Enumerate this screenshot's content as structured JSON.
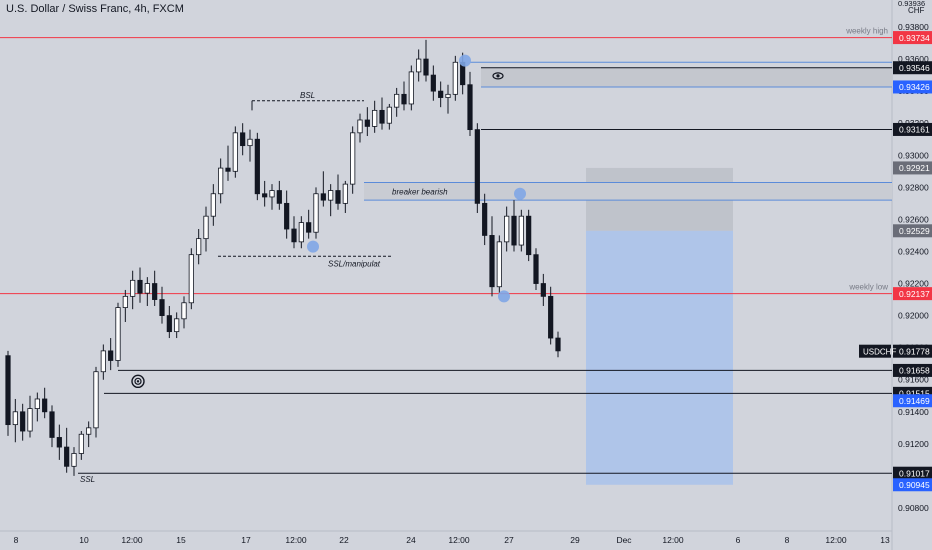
{
  "header": {
    "title": "U.S. Dollar / Swiss Franc, 4h, FXCM",
    "currency": "CHF"
  },
  "colors": {
    "bull": "#ffffff",
    "bear": "#131722",
    "red_line": "#f23645",
    "blue_line": "#5b8bd9",
    "bubble": "#7fa6e6",
    "box_blue": "#a6c0ec",
    "box_gray": "#bcc0c8"
  },
  "chart_data": {
    "type": "candlestick",
    "y_range": [
      0.907,
      0.939
    ],
    "y_ticks": [
      "0.93800",
      "0.93600",
      "0.93400",
      "0.93200",
      "0.93000",
      "0.92800",
      "0.92600",
      "0.92400",
      "0.92200",
      "0.92000",
      "0.91800",
      "0.91600",
      "0.91400",
      "0.91200",
      "0.91000",
      "0.90800"
    ],
    "x_labels": [
      "8",
      "10",
      "12:00",
      "15",
      "17",
      "12:00",
      "22",
      "24",
      "12:00",
      "27",
      "29",
      "Dec",
      "12:00",
      "6",
      "8",
      "12:00",
      "13"
    ],
    "candles": [
      [
        0.9175,
        0.9178,
        0.9125,
        0.9132
      ],
      [
        0.9132,
        0.9148,
        0.9121,
        0.914
      ],
      [
        0.914,
        0.9145,
        0.9122,
        0.9128
      ],
      [
        0.9128,
        0.915,
        0.9124,
        0.9142
      ],
      [
        0.9142,
        0.9152,
        0.9134,
        0.9148
      ],
      [
        0.9148,
        0.9155,
        0.9136,
        0.914
      ],
      [
        0.914,
        0.9144,
        0.9118,
        0.9124
      ],
      [
        0.9124,
        0.9132,
        0.911,
        0.9118
      ],
      [
        0.9118,
        0.913,
        0.9102,
        0.9106
      ],
      [
        0.9106,
        0.9118,
        0.91,
        0.9114
      ],
      [
        0.9114,
        0.9128,
        0.911,
        0.9126
      ],
      [
        0.9126,
        0.9134,
        0.9118,
        0.913
      ],
      [
        0.913,
        0.9168,
        0.9124,
        0.9165
      ],
      [
        0.9165,
        0.9182,
        0.916,
        0.9178
      ],
      [
        0.9178,
        0.9186,
        0.9166,
        0.9172
      ],
      [
        0.9172,
        0.9208,
        0.9168,
        0.9205
      ],
      [
        0.9205,
        0.9216,
        0.9196,
        0.9212
      ],
      [
        0.9212,
        0.9228,
        0.9204,
        0.9222
      ],
      [
        0.9222,
        0.923,
        0.9208,
        0.9214
      ],
      [
        0.9214,
        0.9224,
        0.9206,
        0.922
      ],
      [
        0.922,
        0.9228,
        0.9206,
        0.921
      ],
      [
        0.921,
        0.9218,
        0.9195,
        0.92
      ],
      [
        0.92,
        0.9206,
        0.9186,
        0.919
      ],
      [
        0.919,
        0.9202,
        0.9186,
        0.9198
      ],
      [
        0.9198,
        0.9212,
        0.9192,
        0.9208
      ],
      [
        0.9208,
        0.9242,
        0.9204,
        0.9238
      ],
      [
        0.9238,
        0.9254,
        0.9232,
        0.9248
      ],
      [
        0.9248,
        0.9268,
        0.924,
        0.9262
      ],
      [
        0.9262,
        0.9282,
        0.9256,
        0.9276
      ],
      [
        0.9276,
        0.9298,
        0.927,
        0.9292
      ],
      [
        0.9292,
        0.9306,
        0.9284,
        0.929
      ],
      [
        0.929,
        0.9318,
        0.9286,
        0.9314
      ],
      [
        0.9314,
        0.932,
        0.93,
        0.9306
      ],
      [
        0.9306,
        0.9316,
        0.9296,
        0.931
      ],
      [
        0.931,
        0.9314,
        0.9272,
        0.9276
      ],
      [
        0.9276,
        0.9284,
        0.9268,
        0.9274
      ],
      [
        0.9274,
        0.9282,
        0.9266,
        0.9278
      ],
      [
        0.9278,
        0.9284,
        0.9266,
        0.927
      ],
      [
        0.927,
        0.9278,
        0.9248,
        0.9254
      ],
      [
        0.9254,
        0.9262,
        0.9242,
        0.9246
      ],
      [
        0.9246,
        0.9262,
        0.9242,
        0.9258
      ],
      [
        0.9258,
        0.9266,
        0.9248,
        0.9252
      ],
      [
        0.9252,
        0.928,
        0.9248,
        0.9276
      ],
      [
        0.9276,
        0.929,
        0.9268,
        0.9272
      ],
      [
        0.9272,
        0.9282,
        0.9262,
        0.9278
      ],
      [
        0.9278,
        0.9288,
        0.9266,
        0.927
      ],
      [
        0.927,
        0.9284,
        0.9264,
        0.9282
      ],
      [
        0.9282,
        0.9318,
        0.9276,
        0.9314
      ],
      [
        0.9314,
        0.9326,
        0.9308,
        0.9322
      ],
      [
        0.9322,
        0.933,
        0.9312,
        0.9318
      ],
      [
        0.9318,
        0.9334,
        0.9314,
        0.9328
      ],
      [
        0.9328,
        0.9336,
        0.9316,
        0.932
      ],
      [
        0.932,
        0.9332,
        0.9316,
        0.933
      ],
      [
        0.933,
        0.9342,
        0.9324,
        0.9338
      ],
      [
        0.9338,
        0.9346,
        0.9328,
        0.9332
      ],
      [
        0.9332,
        0.9356,
        0.9328,
        0.9352
      ],
      [
        0.9352,
        0.9366,
        0.9346,
        0.936
      ],
      [
        0.936,
        0.9372,
        0.9346,
        0.935
      ],
      [
        0.935,
        0.9356,
        0.9334,
        0.934
      ],
      [
        0.934,
        0.9346,
        0.933,
        0.9336
      ],
      [
        0.9336,
        0.9344,
        0.9326,
        0.9338
      ],
      [
        0.9338,
        0.9362,
        0.9334,
        0.9358
      ],
      [
        0.9358,
        0.9364,
        0.9338,
        0.9344
      ],
      [
        0.9344,
        0.9352,
        0.9312,
        0.9316
      ],
      [
        0.9316,
        0.932,
        0.9264,
        0.927
      ],
      [
        0.927,
        0.9276,
        0.9244,
        0.925
      ],
      [
        0.925,
        0.9262,
        0.9212,
        0.9218
      ],
      [
        0.9218,
        0.925,
        0.9214,
        0.9246
      ],
      [
        0.9246,
        0.9268,
        0.924,
        0.9262
      ],
      [
        0.9262,
        0.9272,
        0.924,
        0.9244
      ],
      [
        0.9244,
        0.9266,
        0.924,
        0.9262
      ],
      [
        0.9262,
        0.9266,
        0.9234,
        0.9238
      ],
      [
        0.9238,
        0.9242,
        0.9216,
        0.922
      ],
      [
        0.922,
        0.9226,
        0.9206,
        0.9212
      ],
      [
        0.9212,
        0.9218,
        0.9182,
        0.9186
      ],
      [
        0.9186,
        0.919,
        0.9174,
        0.9178
      ]
    ],
    "levels": [
      {
        "label": "0.93734",
        "value": 0.93734,
        "style": "red"
      },
      {
        "label": "0.93546",
        "value": 0.93546,
        "style": "black"
      },
      {
        "label": "0.93426",
        "value": 0.93426,
        "style": "blue"
      },
      {
        "label": "0.93161",
        "value": 0.93161,
        "style": "black"
      },
      {
        "label": "0.92921",
        "value": 0.92921,
        "style": "gray"
      },
      {
        "label": "0.92529",
        "value": 0.92529,
        "style": "gray"
      },
      {
        "label": "0.92137",
        "value": 0.92137,
        "style": "red"
      },
      {
        "label": "0.91658",
        "value": 0.91658,
        "style": "black"
      },
      {
        "label": "0.91515",
        "value": 0.91515,
        "style": "black"
      },
      {
        "label": "0.91469",
        "value": 0.91469,
        "style": "blue"
      },
      {
        "label": "0.91017",
        "value": 0.91017,
        "style": "black"
      },
      {
        "label": "0.90945",
        "value": 0.90945,
        "style": "blue"
      }
    ],
    "price_tag": {
      "symbol": "USDCHF",
      "label": "0.91778",
      "value": 0.91778
    },
    "top_partial_label": "0.93936",
    "annotations": {
      "weekly_high": "weekly high",
      "weekly_low": "weekly low",
      "bsl": "BSL",
      "breaker": "breaker bearish",
      "ssl_manip": "SSL/manipulat",
      "ssl": "SSL"
    }
  }
}
